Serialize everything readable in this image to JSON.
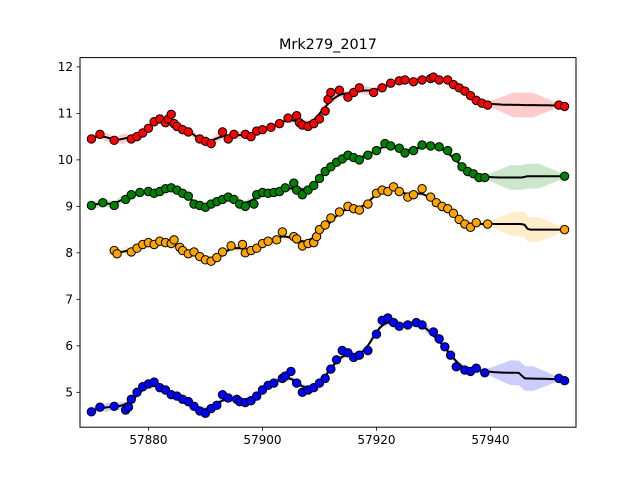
{
  "chart_data": {
    "type": "scatter",
    "title": "Mrk279_2017",
    "xlabel": "",
    "ylabel": "",
    "xlim": [
      57868.0,
      57955.0
    ],
    "ylim": [
      4.25,
      12.2
    ],
    "xticks": [
      57880,
      57900,
      57920,
      57940
    ],
    "yticks": [
      5,
      6,
      7,
      8,
      9,
      10,
      11,
      12
    ],
    "grid": false,
    "series": [
      {
        "color": "#ff0000",
        "x": [
          57870.0,
          57871.5,
          57874.0,
          57877.0,
          57878.0,
          57879.0,
          57880.0,
          57881.0,
          57882.0,
          57883.0,
          57883.5,
          57884.0,
          57884.5,
          57885.0,
          57886.0,
          57887.0,
          57889.0,
          57890.0,
          57891.0,
          57893.0,
          57894.0,
          57895.0,
          57897.0,
          57898.0,
          57899.0,
          57900.0,
          57901.5,
          57903.0,
          57904.5,
          57906.0,
          57906.5,
          57907.0,
          57908.0,
          57909.0,
          57910.0,
          57911.0,
          57911.5,
          57912.0,
          57913.5,
          57915.0,
          57916.0,
          57917.0,
          57919.5,
          57921.0,
          57922.5,
          57924.0,
          57925.0,
          57926.5,
          57928.0,
          57929.5,
          57930.0,
          57931.0,
          57932.5,
          57933.5,
          57934.5,
          57935.5,
          57936.5,
          57937.5,
          57938.5,
          57939.5,
          57952.0,
          57953.0
        ],
        "y": [
          10.45,
          10.55,
          10.42,
          10.45,
          10.5,
          10.58,
          10.68,
          10.82,
          10.88,
          10.8,
          10.88,
          10.98,
          10.78,
          10.72,
          10.65,
          10.6,
          10.45,
          10.4,
          10.35,
          10.6,
          10.45,
          10.55,
          10.55,
          10.5,
          10.62,
          10.65,
          10.7,
          10.78,
          10.9,
          10.95,
          10.8,
          10.75,
          10.72,
          10.78,
          10.88,
          11.05,
          11.3,
          11.45,
          11.5,
          11.35,
          11.45,
          11.55,
          11.45,
          11.55,
          11.65,
          11.7,
          11.72,
          11.68,
          11.72,
          11.75,
          11.78,
          11.72,
          11.72,
          11.62,
          11.55,
          11.48,
          11.38,
          11.28,
          11.22,
          11.18,
          11.18,
          11.15
        ]
      },
      {
        "color": "#008000",
        "x": [
          57870.0,
          57872.0,
          57874.0,
          57876.0,
          57877.0,
          57878.5,
          57880.0,
          57881.0,
          57882.0,
          57883.0,
          57884.0,
          57885.0,
          57886.0,
          57887.0,
          57888.0,
          57889.0,
          57890.0,
          57891.0,
          57892.0,
          57893.0,
          57894.0,
          57895.0,
          57896.0,
          57897.0,
          57898.5,
          57899.0,
          57900.0,
          57901.0,
          57902.0,
          57903.0,
          57904.0,
          57905.5,
          57906.0,
          57907.0,
          57908.0,
          57909.0,
          57910.0,
          57911.0,
          57912.0,
          57913.0,
          57914.0,
          57915.0,
          57916.0,
          57917.0,
          57918.5,
          57920.0,
          57921.5,
          57922.5,
          57924.0,
          57925.0,
          57926.5,
          57928.0,
          57929.5,
          57931.0,
          57932.5,
          57934.0,
          57935.0,
          57936.0,
          57937.0,
          57938.0,
          57939.0,
          57953.0
        ],
        "y": [
          9.02,
          9.08,
          9.02,
          9.15,
          9.25,
          9.3,
          9.32,
          9.28,
          9.32,
          9.38,
          9.4,
          9.35,
          9.28,
          9.22,
          9.05,
          9.02,
          8.98,
          9.05,
          9.1,
          9.15,
          9.2,
          9.15,
          9.05,
          9.0,
          9.05,
          9.25,
          9.3,
          9.28,
          9.3,
          9.32,
          9.4,
          9.5,
          9.35,
          9.25,
          9.35,
          9.45,
          9.6,
          9.75,
          9.85,
          9.95,
          10.02,
          10.1,
          10.05,
          10.0,
          10.1,
          10.2,
          10.35,
          10.3,
          10.25,
          10.15,
          10.2,
          10.32,
          10.3,
          10.28,
          10.2,
          10.05,
          9.85,
          9.75,
          9.7,
          9.62,
          9.62,
          9.65
        ]
      },
      {
        "color": "#ffa500",
        "x": [
          57874.0,
          57874.5,
          57877.0,
          57878.0,
          57879.0,
          57880.0,
          57881.0,
          57882.0,
          57883.0,
          57884.0,
          57884.5,
          57885.5,
          57886.0,
          57887.0,
          57888.0,
          57889.0,
          57890.0,
          57891.0,
          57892.0,
          57893.0,
          57894.5,
          57896.5,
          57897.0,
          57898.0,
          57899.0,
          57900.0,
          57901.0,
          57902.5,
          57903.5,
          57905.5,
          57906.0,
          57907.0,
          57908.0,
          57909.0,
          57909.5,
          57910.0,
          57911.0,
          57912.0,
          57913.5,
          57915.0,
          57916.0,
          57917.0,
          57918.5,
          57920.0,
          57921.0,
          57922.0,
          57923.0,
          57924.0,
          57925.5,
          57926.5,
          57928.0,
          57929.5,
          57930.5,
          57931.5,
          57932.5,
          57933.5,
          57934.5,
          57935.5,
          57936.5,
          57937.5,
          57939.5,
          57953.0
        ],
        "y": [
          8.05,
          7.98,
          8.02,
          8.1,
          8.18,
          8.22,
          8.18,
          8.25,
          8.22,
          8.2,
          8.28,
          8.12,
          8.05,
          7.98,
          8.02,
          7.92,
          7.85,
          7.82,
          7.9,
          8.02,
          8.15,
          8.18,
          8.0,
          8.05,
          8.1,
          8.2,
          8.25,
          8.28,
          8.45,
          8.35,
          8.3,
          8.15,
          8.2,
          8.22,
          8.35,
          8.5,
          8.6,
          8.75,
          8.88,
          9.0,
          8.95,
          8.92,
          9.05,
          9.28,
          9.35,
          9.32,
          9.42,
          9.32,
          9.2,
          9.25,
          9.38,
          9.2,
          9.08,
          9.0,
          8.95,
          8.85,
          8.72,
          8.62,
          8.55,
          8.65,
          8.62,
          8.5
        ]
      },
      {
        "color": "#0000ff",
        "x": [
          57870.0,
          57871.5,
          57874.0,
          57876.0,
          57876.5,
          57877.0,
          57878.0,
          57879.0,
          57880.0,
          57881.0,
          57882.0,
          57883.0,
          57884.0,
          57885.0,
          57886.0,
          57887.0,
          57888.0,
          57889.0,
          57890.0,
          57891.0,
          57892.0,
          57893.0,
          57894.0,
          57895.5,
          57896.0,
          57897.0,
          57898.0,
          57899.0,
          57900.0,
          57901.0,
          57902.0,
          57903.5,
          57904.0,
          57905.0,
          57906.0,
          57907.0,
          57908.0,
          57909.0,
          57910.0,
          57911.0,
          57912.0,
          57913.0,
          57914.0,
          57915.0,
          57916.0,
          57917.0,
          57918.5,
          57920.0,
          57921.0,
          57922.0,
          57923.0,
          57924.0,
          57925.5,
          57927.0,
          57928.0,
          57930.0,
          57931.0,
          57932.0,
          57933.0,
          57934.0,
          57935.5,
          57936.5,
          57937.5,
          57939.0,
          57952.0,
          57953.0
        ],
        "y": [
          4.58,
          4.68,
          4.7,
          4.62,
          4.68,
          4.85,
          5.0,
          5.12,
          5.18,
          5.22,
          5.1,
          5.05,
          4.95,
          4.92,
          4.85,
          4.8,
          4.7,
          4.6,
          4.55,
          4.65,
          4.72,
          4.95,
          4.88,
          4.85,
          4.8,
          4.78,
          4.82,
          4.92,
          5.05,
          5.15,
          5.2,
          5.3,
          5.35,
          5.45,
          5.2,
          5.0,
          5.05,
          5.1,
          5.2,
          5.3,
          5.5,
          5.7,
          5.9,
          5.85,
          5.75,
          5.8,
          5.9,
          6.25,
          6.55,
          6.6,
          6.5,
          6.42,
          6.45,
          6.5,
          6.45,
          6.3,
          6.15,
          5.98,
          5.8,
          5.55,
          5.48,
          5.45,
          5.52,
          5.42,
          5.3,
          5.25
        ]
      }
    ]
  }
}
